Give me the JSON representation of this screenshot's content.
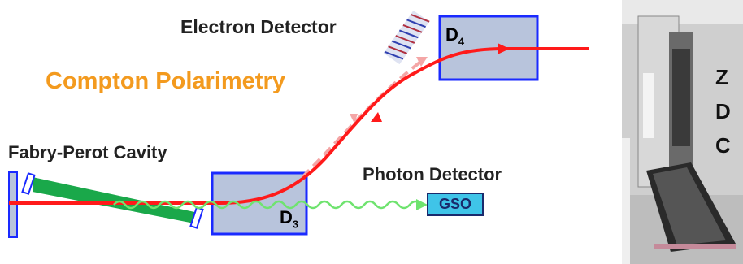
{
  "diagram": {
    "title": "Compton Polarimetry",
    "electron_detector": "Electron Detector",
    "fabry_perot": "Fabry-Perot Cavity",
    "photon_detector": "Photon Detector",
    "d4": {
      "main": "D",
      "sub": "4"
    },
    "d3": {
      "main": "D",
      "sub": "3"
    },
    "gso": "GSO"
  },
  "photo": {
    "zdc": [
      "Z",
      "D",
      "C"
    ]
  },
  "colors": {
    "title": "#f39a1e",
    "beam": "#ff1a1a",
    "scattered_electron": "#f4a6a6",
    "photon": "#6fe36f",
    "laser": "#1aa84a",
    "magnet_fill": "#b8c4dc",
    "magnet_border": "#1a2aff",
    "gso_fill": "#3fc4e8"
  }
}
